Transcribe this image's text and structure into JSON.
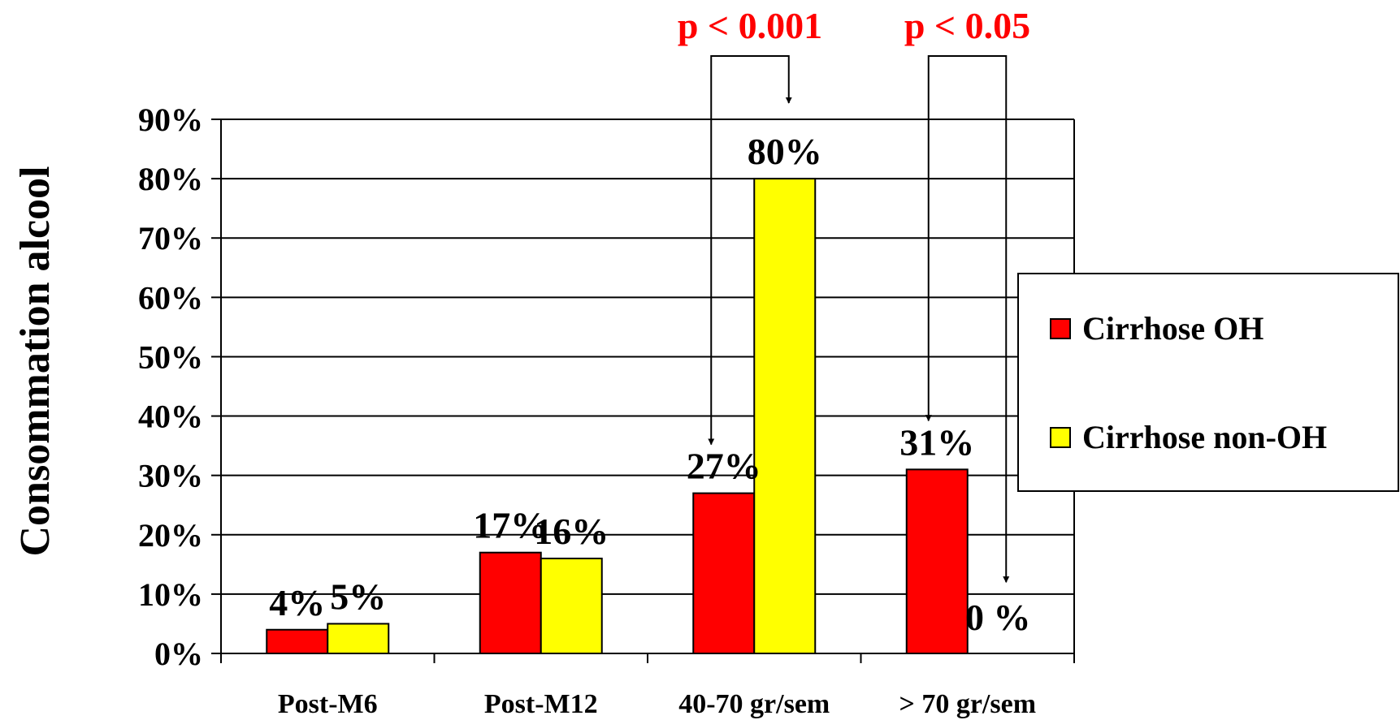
{
  "chart_data": {
    "type": "bar",
    "ylabel": "Consommation alcool",
    "ylim": [
      0,
      90
    ],
    "yticks": [
      "0%",
      "10%",
      "20%",
      "30%",
      "40%",
      "50%",
      "60%",
      "70%",
      "80%",
      "90%"
    ],
    "ytick_values": [
      0,
      10,
      20,
      30,
      40,
      50,
      60,
      70,
      80,
      90
    ],
    "categories": [
      "Post-M6",
      "Post-M12",
      "40-70 gr/sem",
      "> 70 gr/sem"
    ],
    "series": [
      {
        "name": "Cirrhose OH",
        "color": "#ff0000",
        "values": [
          4,
          17,
          27,
          31
        ],
        "labels": [
          "4%",
          "17%",
          "27%",
          "31%"
        ]
      },
      {
        "name": "Cirrhose non-OH",
        "color": "#ffff00",
        "values": [
          5,
          16,
          80,
          0
        ],
        "labels": [
          "5%",
          "16%",
          "80%",
          "0 %"
        ]
      }
    ],
    "annotations": [
      {
        "text": "p < 0.001",
        "category_index": 2,
        "color": "#ff0000"
      },
      {
        "text": "p < 0.05",
        "category_index": 3,
        "color": "#ff0000"
      }
    ],
    "grid": true,
    "legend_position": "right"
  }
}
